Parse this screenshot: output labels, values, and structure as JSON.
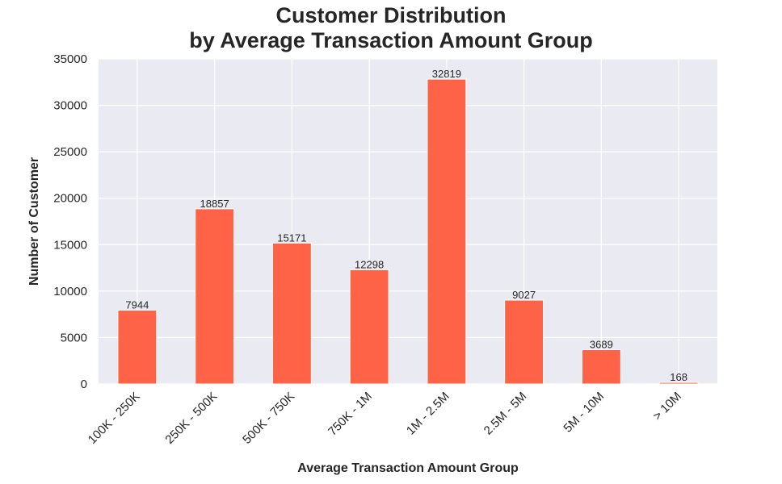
{
  "chart_data": {
    "type": "bar",
    "title": [
      "Customer Distribution",
      "by Average Transaction Amount Group"
    ],
    "xlabel": "Average Transaction Amount Group",
    "ylabel": "Number of Customer",
    "categories": [
      "100K - 250K",
      "250K - 500K",
      "500K - 750K",
      "750K - 1M",
      "1M - 2.5M",
      "2.5M - 5M",
      "5M - 10M",
      "> 10M"
    ],
    "values": [
      7944,
      18857,
      15171,
      12298,
      32819,
      9027,
      3689,
      168
    ],
    "ylim": [
      0,
      35000
    ],
    "yticks": [
      0,
      5000,
      10000,
      15000,
      20000,
      25000,
      30000,
      35000
    ],
    "grid": true,
    "legend": "none",
    "colors": {
      "bar": "#FF6347",
      "plot_background": "#EAEAF2",
      "grid": "#FFFFFF",
      "text": "#262626"
    }
  }
}
